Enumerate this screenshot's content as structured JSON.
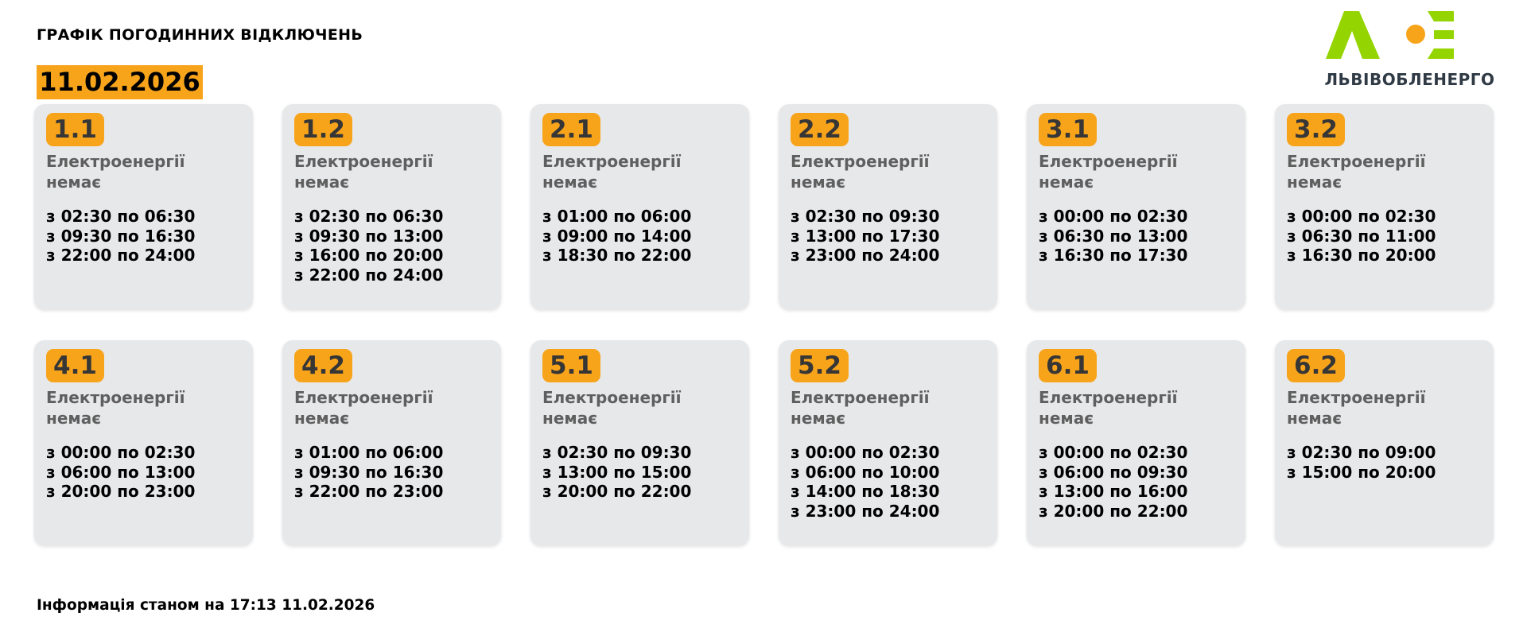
{
  "header": {
    "title": "ГРАФІК ПОГОДИННИХ ВІДКЛЮЧЕНЬ",
    "date": "11.02.2026"
  },
  "logo": {
    "text": "ЛЬВІВОБЛЕНЕРГО",
    "colors": {
      "green": "#94d400",
      "orange": "#f8a41b"
    }
  },
  "accent_color": "#f8a41b",
  "status_label": "Електроенергії немає",
  "groups": [
    {
      "id": "1.1",
      "times": [
        "з 02:30 по 06:30",
        "з 09:30 по 16:30",
        "з 22:00 по 24:00"
      ]
    },
    {
      "id": "1.2",
      "times": [
        "з 02:30 по 06:30",
        "з 09:30 по 13:00",
        "з 16:00 по 20:00",
        "з 22:00 по 24:00"
      ]
    },
    {
      "id": "2.1",
      "times": [
        "з 01:00 по 06:00",
        "з 09:00 по 14:00",
        "з 18:30 по 22:00"
      ]
    },
    {
      "id": "2.2",
      "times": [
        "з 02:30 по 09:30",
        "з 13:00 по 17:30",
        "з 23:00 по 24:00"
      ]
    },
    {
      "id": "3.1",
      "times": [
        "з 00:00 по 02:30",
        "з 06:30 по 13:00",
        "з 16:30 по 17:30"
      ]
    },
    {
      "id": "3.2",
      "times": [
        "з 00:00 по 02:30",
        "з 06:30 по 11:00",
        "з 16:30 по 20:00"
      ]
    },
    {
      "id": "4.1",
      "times": [
        "з 00:00 по 02:30",
        "з 06:00 по 13:00",
        "з 20:00 по 23:00"
      ]
    },
    {
      "id": "4.2",
      "times": [
        "з 01:00 по 06:00",
        "з 09:30 по 16:30",
        "з 22:00 по 23:00"
      ]
    },
    {
      "id": "5.1",
      "times": [
        "з 02:30 по 09:30",
        "з 13:00 по 15:00",
        "з 20:00 по 22:00"
      ]
    },
    {
      "id": "5.2",
      "times": [
        "з 00:00 по 02:30",
        "з 06:00 по 10:00",
        "з 14:00 по 18:30",
        "з 23:00 по 24:00"
      ]
    },
    {
      "id": "6.1",
      "times": [
        "з 00:00 по 02:30",
        "з 06:00 по 09:30",
        "з 13:00 по 16:00",
        "з 20:00 по 22:00"
      ]
    },
    {
      "id": "6.2",
      "times": [
        "з 02:30 по 09:00",
        "з 15:00 по 20:00"
      ]
    }
  ],
  "footer": {
    "updated": "Інформація станом на 17:13 11.02.2026"
  }
}
